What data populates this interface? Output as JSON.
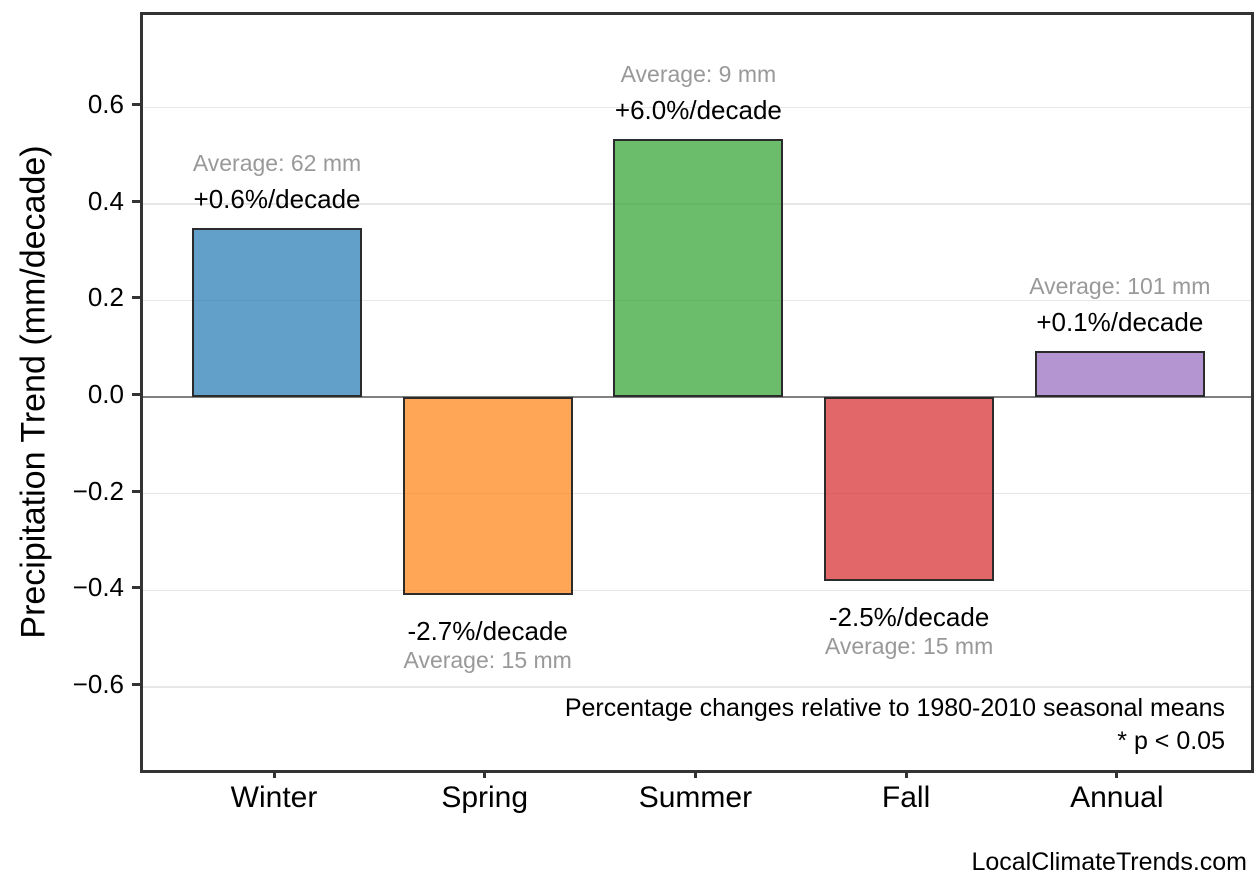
{
  "chart_data": {
    "type": "bar",
    "title": "",
    "ylabel": "Precipitation Trend (mm/decade)",
    "xlabel": "",
    "categories": [
      "Winter",
      "Spring",
      "Summer",
      "Fall",
      "Annual"
    ],
    "values": [
      0.35,
      -0.41,
      0.535,
      -0.38,
      0.095
    ],
    "bar_colors": [
      "rgba(31,119,180,0.7)",
      "rgba(255,127,14,0.7)",
      "rgba(44,160,44,0.7)",
      "rgba(214,39,40,0.7)",
      "rgba(148,103,189,0.7)"
    ],
    "bar_edge_color": "#2b2b2b",
    "annotations": [
      {
        "average": "Average: 62 mm",
        "trend": "+0.6%/decade"
      },
      {
        "average": "Average: 15 mm",
        "trend": "-2.7%/decade"
      },
      {
        "average": "Average: 9 mm",
        "trend": "+6.0%/decade"
      },
      {
        "average": "Average: 15 mm",
        "trend": "-2.5%/decade"
      },
      {
        "average": "Average: 101 mm",
        "trend": "+0.1%/decade"
      }
    ],
    "ylim": [
      -0.772,
      0.791
    ],
    "yticks": [
      0.6,
      0.4,
      0.2,
      0.0,
      -0.2,
      -0.4,
      -0.6
    ],
    "ytick_labels": [
      "0.6",
      "0.4",
      "0.2",
      "0.0",
      "−0.2",
      "−0.4",
      "−0.6"
    ],
    "grid": true,
    "gridline_color": "#e7e7e7",
    "zero_line_color": "#808080",
    "legend": null,
    "footnote_line1": "Percentage changes relative to 1980-2010 seasonal means",
    "footnote_line2": "* p < 0.05",
    "watermark": "LocalClimateTrends.com",
    "text_color": "#000000",
    "muted_text_color": "#999999"
  }
}
